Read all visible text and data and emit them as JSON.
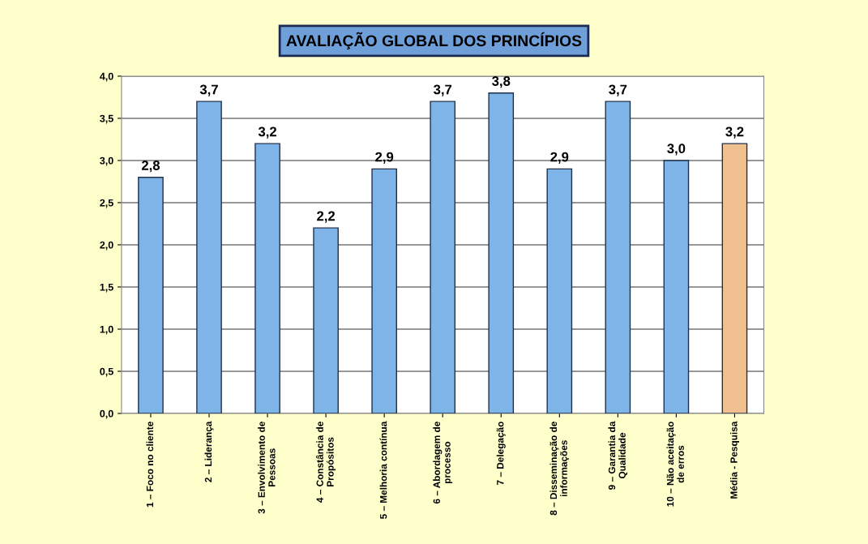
{
  "chart_data": {
    "type": "bar",
    "title": "AVALIAÇÃO GLOBAL DOS PRINCÍPIOS",
    "categories": [
      "1 – Foco no cliente",
      "2 – Liderança",
      "3 – Envolvimento de\nPessoas",
      "4 – Constância de\nPropósitos",
      "5 – Melhoria contínua",
      "6 – Abordagem de\nprocesso",
      "7 – Delegação",
      "8 – Disseminação de\ninformações",
      "9 – Garantia da\nQualidade",
      "10 – Não aceitação\nde erros",
      "Média - Pesquisa"
    ],
    "values": [
      2.8,
      3.7,
      3.2,
      2.2,
      2.9,
      3.7,
      3.8,
      2.9,
      3.7,
      3.0,
      3.2
    ],
    "value_labels": [
      "2,8",
      "3,7",
      "3,2",
      "2,2",
      "2,9",
      "3,7",
      "3,8",
      "2,9",
      "3,7",
      "3,0",
      "3,2"
    ],
    "colors": [
      "#7fb4e8",
      "#7fb4e8",
      "#7fb4e8",
      "#7fb4e8",
      "#7fb4e8",
      "#7fb4e8",
      "#7fb4e8",
      "#7fb4e8",
      "#7fb4e8",
      "#7fb4e8",
      "#f0c090"
    ],
    "ylim": [
      0,
      4
    ],
    "yticks": [
      {
        "value": 0,
        "label": "0,0"
      },
      {
        "value": 0.5,
        "label": "0,5"
      },
      {
        "value": 1,
        "label": "1,0"
      },
      {
        "value": 1.5,
        "label": "1,5"
      },
      {
        "value": 2,
        "label": "2,0"
      },
      {
        "value": 2.5,
        "label": "2,5"
      },
      {
        "value": 3,
        "label": "3,0"
      },
      {
        "value": 3.5,
        "label": "3,5"
      },
      {
        "value": 4,
        "label": "4,0"
      }
    ],
    "grid": "y"
  }
}
